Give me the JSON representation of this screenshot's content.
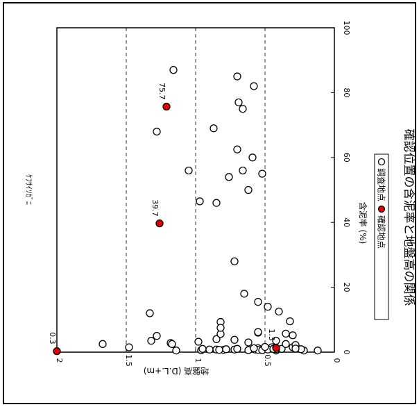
{
  "chart_data": {
    "type": "scatter",
    "orientation": "rotated-90-clockwise",
    "title": "確認位置の含泥率と地盤高の関係",
    "species_label": "ｹﾌｻｲｿｶﾞﾆ",
    "xlabel": "含泥率 (%)",
    "ylabel": "地盤高 (D.L.+m)",
    "xlim": [
      0,
      100
    ],
    "ylim": [
      0,
      2
    ],
    "x_ticks": [
      "0",
      "20",
      "40",
      "60",
      "80",
      "100"
    ],
    "y_ticks": [
      "0",
      "0.5",
      "1",
      "1.5",
      "2"
    ],
    "grid": "dashed lines at 0.5, 1 and 1.5",
    "legend": {
      "placement": "right",
      "items": [
        {
          "label": "調査地点",
          "color": "#ffffff"
        },
        {
          "label": "確認地点",
          "color": "#e00000"
        }
      ]
    },
    "series": [
      {
        "name": "調査地点",
        "color": "#ffffff",
        "points": [
          [
            2.5,
            1.67
          ],
          [
            1.5,
            1.48
          ],
          [
            2.8,
            1.18
          ],
          [
            3.2,
            0.98
          ],
          [
            0.6,
            0.96
          ],
          [
            1.0,
            0.95
          ],
          [
            0.8,
            0.9
          ],
          [
            4.0,
            0.85
          ],
          [
            0.8,
            0.85
          ],
          [
            0.7,
            0.8
          ],
          [
            9.3,
            0.82
          ],
          [
            5.6,
            0.82
          ],
          [
            0.7,
            0.83
          ],
          [
            0.9,
            0.78
          ],
          [
            7.5,
            0.82
          ],
          [
            0.8,
            0.72
          ],
          [
            3.8,
            0.72
          ],
          [
            1.0,
            0.7
          ],
          [
            0.6,
            0.62
          ],
          [
            0.8,
            0.57
          ],
          [
            1.2,
            0.55
          ],
          [
            0.7,
            0.55
          ],
          [
            0.6,
            0.52
          ],
          [
            1.5,
            0.45
          ],
          [
            0.5,
            0.42
          ],
          [
            1.0,
            0.38
          ],
          [
            3.5,
            0.42
          ],
          [
            5.7,
            0.35
          ],
          [
            9.5,
            0.32
          ],
          [
            5.2,
            0.3
          ],
          [
            1.5,
            0.3
          ],
          [
            0.5,
            0.22
          ],
          [
            0.9,
            0.24
          ],
          [
            0.5,
            0.12
          ],
          [
            12.0,
            1.33
          ],
          [
            3.5,
            1.32
          ],
          [
            5.0,
            1.28
          ],
          [
            2.5,
            1.17
          ],
          [
            0.5,
            1.14
          ],
          [
            28.0,
            0.72
          ],
          [
            18.0,
            0.65
          ],
          [
            14.0,
            0.48
          ],
          [
            12.5,
            0.4
          ],
          [
            6.0,
            0.55
          ],
          [
            68.0,
            1.28
          ],
          [
            46.5,
            0.97
          ],
          [
            56.0,
            1.05
          ],
          [
            46.0,
            0.85
          ],
          [
            54.0,
            0.76
          ],
          [
            56.0,
            0.66
          ],
          [
            55.0,
            0.52
          ],
          [
            62.5,
            0.7
          ],
          [
            69.0,
            0.87
          ],
          [
            87.0,
            1.16
          ],
          [
            85.0,
            0.7
          ],
          [
            77.0,
            0.69
          ],
          [
            75.0,
            0.66
          ],
          [
            82.0,
            0.58
          ],
          [
            60.0,
            0.59
          ],
          [
            50.0,
            0.62
          ],
          [
            0.8,
            0.48
          ],
          [
            1.6,
            0.5
          ],
          [
            2.5,
            0.35
          ],
          [
            1.2,
            0.58
          ],
          [
            3.0,
            0.62
          ],
          [
            6.2,
            0.55
          ],
          [
            15.5,
            0.55
          ],
          [
            0.9,
            0.42
          ],
          [
            2.2,
            0.28
          ],
          [
            1.1,
            0.28
          ],
          [
            1.0,
            0.44
          ]
        ]
      },
      {
        "name": "確認地点",
        "color": "#e00000",
        "points": [
          [
            0.3,
            2.0
          ],
          [
            39.7,
            1.26
          ],
          [
            75.7,
            1.21
          ],
          [
            1.3,
            0.42
          ]
        ]
      }
    ],
    "annotations": [
      {
        "text": "0.3",
        "x": 0.3,
        "y": 2.0
      },
      {
        "text": "39.7",
        "x": 39.7,
        "y": 1.26
      },
      {
        "text": "75.7",
        "x": 75.7,
        "y": 1.21
      },
      {
        "text": "1.3",
        "x": 1.3,
        "y": 0.42
      }
    ]
  }
}
